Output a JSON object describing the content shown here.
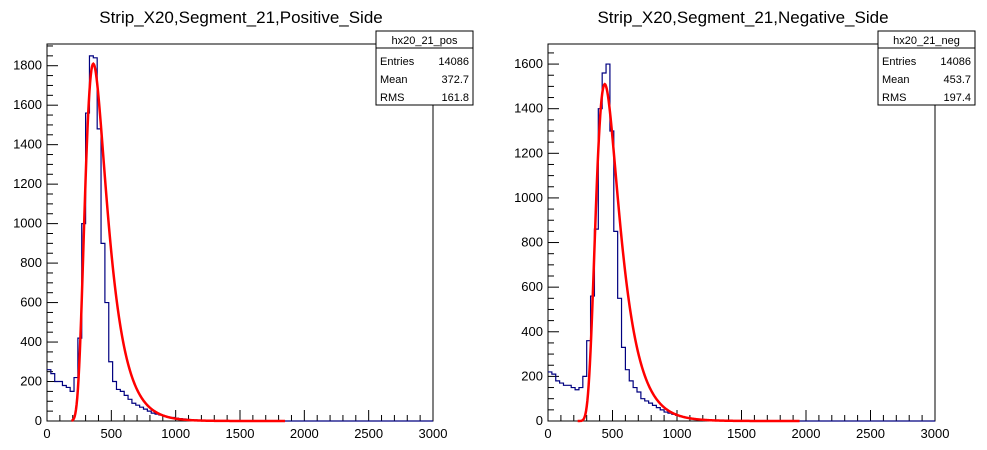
{
  "chart_data": [
    {
      "type": "histogram",
      "title": "Strip_X20,Segment_21,Positive_Side",
      "xlim": [
        0,
        3000
      ],
      "ylim": [
        0,
        1910
      ],
      "xticks": [
        0,
        500,
        1000,
        1500,
        2000,
        2500,
        3000
      ],
      "yticks": [
        0,
        200,
        400,
        600,
        800,
        1000,
        1200,
        1400,
        1600,
        1800
      ],
      "xtick_labels": [
        "0",
        "500",
        "1000",
        "1500",
        "2000",
        "2500",
        "3000"
      ],
      "ytick_labels": [
        "0",
        "200",
        "400",
        "600",
        "800",
        "1000",
        "1200",
        "1400",
        "1600",
        "1800"
      ],
      "bin_width": 30,
      "values": [
        260,
        240,
        200,
        200,
        180,
        170,
        150,
        220,
        420,
        1000,
        1560,
        1850,
        1840,
        1480,
        900,
        600,
        300,
        200,
        160,
        150,
        130,
        110,
        90,
        80,
        70,
        60,
        50,
        40,
        35,
        30,
        25,
        20,
        18,
        15,
        12,
        10,
        8,
        6,
        5,
        4,
        3,
        3,
        2,
        2,
        2,
        1,
        1,
        1,
        1,
        1,
        1,
        1,
        0,
        0,
        0,
        0,
        0,
        0,
        0,
        0,
        0,
        0,
        0,
        0,
        0,
        0,
        0,
        0,
        0,
        0,
        0,
        0,
        0,
        0,
        0,
        0,
        0,
        0,
        0,
        0,
        0,
        0,
        0,
        0,
        0,
        0,
        0,
        0,
        0,
        0,
        0,
        0,
        0,
        0,
        0,
        0,
        0,
        0,
        0,
        0
      ],
      "fit": {
        "type": "landau",
        "amplitude": 1810,
        "mpv": 360,
        "sigma": 58,
        "x_range": [
          190,
          1850
        ],
        "color": "#ff0000"
      },
      "line_color": "#000080",
      "stats": {
        "name": "hx20_21_pos",
        "rows": [
          {
            "label": "Entries",
            "value": "14086"
          },
          {
            "label": "Mean",
            "value": "372.7"
          },
          {
            "label": "RMS",
            "value": "161.8"
          }
        ]
      }
    },
    {
      "type": "histogram",
      "title": "Strip_X20,Segment_21,Negative_Side",
      "xlim": [
        0,
        3000
      ],
      "ylim": [
        0,
        1690
      ],
      "xticks": [
        0,
        500,
        1000,
        1500,
        2000,
        2500,
        3000
      ],
      "yticks": [
        0,
        200,
        400,
        600,
        800,
        1000,
        1200,
        1400,
        1600
      ],
      "xtick_labels": [
        "0",
        "500",
        "1000",
        "1500",
        "2000",
        "2500",
        "3000"
      ],
      "ytick_labels": [
        "0",
        "200",
        "400",
        "600",
        "800",
        "1000",
        "1200",
        "1400",
        "1600"
      ],
      "bin_width": 30,
      "values": [
        220,
        210,
        180,
        170,
        160,
        160,
        150,
        140,
        150,
        200,
        360,
        560,
        860,
        1400,
        1560,
        1600,
        1300,
        850,
        550,
        330,
        230,
        180,
        150,
        130,
        100,
        90,
        80,
        70,
        60,
        50,
        40,
        35,
        30,
        25,
        20,
        16,
        12,
        10,
        8,
        6,
        5,
        4,
        3,
        2,
        2,
        1,
        1,
        1,
        1,
        1,
        1,
        1,
        1,
        1,
        1,
        0,
        0,
        0,
        0,
        0,
        0,
        0,
        0,
        0,
        0,
        0,
        0,
        0,
        0,
        0,
        0,
        0,
        0,
        0,
        0,
        0,
        0,
        0,
        0,
        0,
        0,
        0,
        0,
        0,
        0,
        0,
        0,
        0,
        0,
        0,
        0,
        0,
        0,
        0,
        0,
        0,
        0,
        0,
        0,
        0
      ],
      "fit": {
        "type": "landau",
        "amplitude": 1510,
        "mpv": 440,
        "sigma": 62,
        "x_range": [
          230,
          1950
        ],
        "color": "#ff0000"
      },
      "line_color": "#000080",
      "stats": {
        "name": "hx20_21_neg",
        "rows": [
          {
            "label": "Entries",
            "value": "14086"
          },
          {
            "label": "Mean",
            "value": "453.7"
          },
          {
            "label": "RMS",
            "value": "197.4"
          }
        ]
      }
    }
  ]
}
